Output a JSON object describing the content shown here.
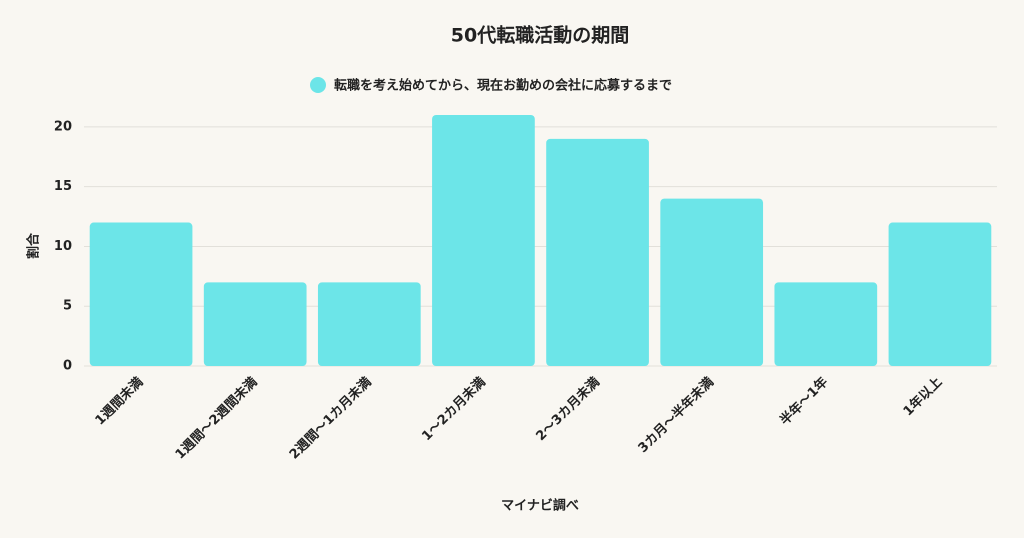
{
  "chart_data": {
    "type": "bar",
    "title": "50代転職活動の期間",
    "series": [
      {
        "name": "転職を考え始めてから、現在お勤めの会社に応募するまで",
        "color": "#6ce5e8",
        "values": [
          12,
          7,
          7,
          21,
          19,
          14,
          7,
          12
        ]
      }
    ],
    "categories": [
      "1週間未満",
      "1週間〜2週間未満",
      "2週間〜1カ月未満",
      "1〜2カ月未満",
      "2〜3カ月未満",
      "3カ月〜半年未満",
      "半年〜1年",
      "1年以上"
    ],
    "ylabel": "割合",
    "xlabel": "マイナビ調べ",
    "ylim": [
      0,
      22
    ],
    "yticks": [
      0,
      5,
      10,
      15,
      20
    ],
    "grid": true
  }
}
